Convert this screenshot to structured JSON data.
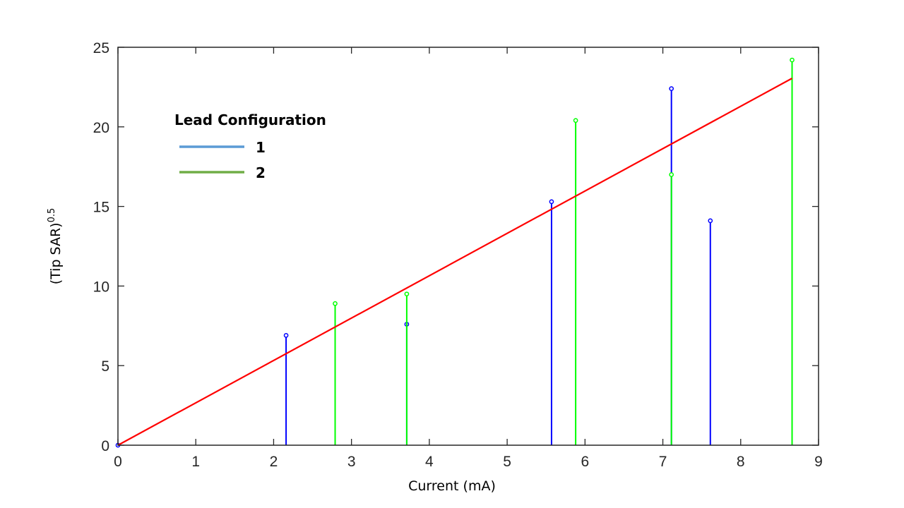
{
  "chart_data": {
    "type": "scatter",
    "xlabel": "Current (mA)",
    "ylabel_main": "(Tip SAR)",
    "ylabel_sup": "0.5",
    "xlim": [
      0,
      9
    ],
    "ylim": [
      0,
      25
    ],
    "xticks": [
      0,
      1,
      2,
      3,
      4,
      5,
      6,
      7,
      8,
      9
    ],
    "yticks": [
      0,
      5,
      10,
      15,
      20,
      25
    ],
    "grid": false,
    "legend": {
      "title": "Lead Configuration",
      "placement": "upper-left",
      "entries": [
        {
          "label": "1",
          "color": "#5b9bd5"
        },
        {
          "label": "2",
          "color": "#70ad47"
        }
      ]
    },
    "series": [
      {
        "name": "1",
        "style": "stem",
        "color": "#0000ff",
        "points": [
          {
            "x": 0,
            "y": 0
          },
          {
            "x": 2.16,
            "y": 6.9
          },
          {
            "x": 3.71,
            "y": 7.6
          },
          {
            "x": 5.57,
            "y": 15.3
          },
          {
            "x": 7.11,
            "y": 22.4
          },
          {
            "x": 7.61,
            "y": 14.1
          }
        ]
      },
      {
        "name": "2",
        "style": "stem",
        "color": "#00ff00",
        "points": [
          {
            "x": 2.79,
            "y": 8.9
          },
          {
            "x": 3.71,
            "y": 9.5
          },
          {
            "x": 5.88,
            "y": 20.4
          },
          {
            "x": 7.11,
            "y": 17.0
          },
          {
            "x": 8.66,
            "y": 24.2
          }
        ]
      }
    ],
    "fit_line": {
      "color": "#ff0000",
      "x": [
        0,
        8.66
      ],
      "y": [
        0,
        23.05
      ]
    }
  }
}
